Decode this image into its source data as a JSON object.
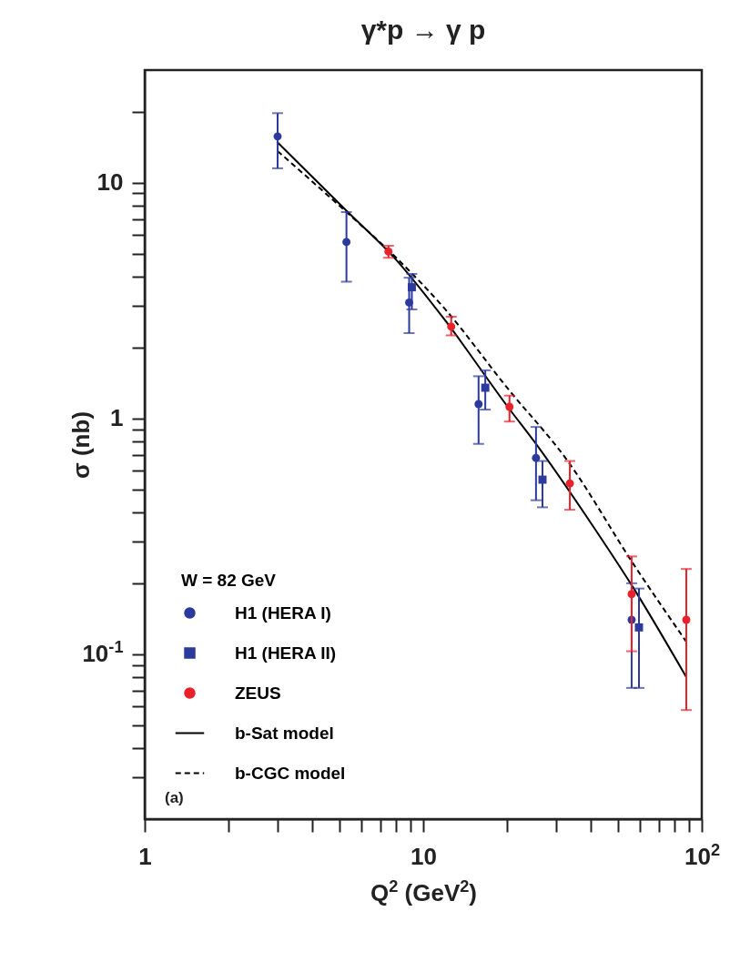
{
  "chart_data": {
    "type": "scatter",
    "title": "γ*p → γ p",
    "xlabel": "Q$^{2}$  (GeV$^{2}$)",
    "ylabel": "σ  (nb)",
    "legend_title": "W = 82 GeV",
    "log": "xy",
    "legend": "bottom left",
    "grid": false,
    "xlim": [
      1,
      100
    ],
    "ylim": [
      0.02,
      30
    ],
    "xticks": [
      1,
      {
        "value": 2,
        "label": null
      },
      {
        "value": 3,
        "label": null
      },
      {
        "value": 4,
        "label": null
      },
      {
        "value": 5,
        "label": null
      },
      {
        "value": 6,
        "label": null
      },
      {
        "value": 7,
        "label": null
      },
      {
        "value": 8,
        "label": null
      },
      {
        "value": 9,
        "label": null
      },
      10,
      {
        "value": 20,
        "label": null
      },
      {
        "value": 30,
        "label": null
      },
      {
        "value": 40,
        "label": null
      },
      {
        "value": 50,
        "label": null
      },
      {
        "value": 60,
        "label": null
      },
      {
        "value": 70,
        "label": null
      },
      {
        "value": 80,
        "label": null
      },
      {
        "value": 90,
        "label": null
      },
      {
        "value": 100,
        "label": "10$^{2}$"
      }
    ],
    "yticks": [
      {
        "value": 0.03,
        "label": null
      },
      {
        "value": 0.04,
        "label": null
      },
      {
        "value": 0.05,
        "label": null
      },
      {
        "value": 0.06,
        "label": null
      },
      {
        "value": 0.07,
        "label": null
      },
      {
        "value": 0.08,
        "label": null
      },
      {
        "value": 0.09,
        "label": null
      },
      {
        "value": 0.1,
        "label": "10$^{-1}$"
      },
      {
        "value": 0.2,
        "label": null
      },
      {
        "value": 0.3,
        "label": null
      },
      {
        "value": 0.4,
        "label": null
      },
      {
        "value": 0.5,
        "label": null
      },
      {
        "value": 0.6,
        "label": null
      },
      {
        "value": 0.7,
        "label": null
      },
      {
        "value": 0.8,
        "label": null
      },
      {
        "value": 0.9,
        "label": null
      },
      1,
      {
        "value": 2,
        "label": null
      },
      {
        "value": 3,
        "label": null
      },
      {
        "value": 4,
        "label": null
      },
      {
        "value": 5,
        "label": null
      },
      {
        "value": 6,
        "label": null
      },
      {
        "value": 7,
        "label": null
      },
      {
        "value": 8,
        "label": null
      },
      {
        "value": 9,
        "label": null
      },
      10,
      {
        "value": 20,
        "label": null
      }
    ],
    "annotations": [
      "(a)"
    ],
    "series": [
      {
        "name": "H1 (HERA I)",
        "marker": "circle",
        "color": "#2b3a9c",
        "x": [
          3,
          5.3,
          8.9,
          15.8,
          25.4,
          56
        ],
        "values": [
          15.7,
          5.6,
          3.1,
          1.15,
          0.68,
          0.14
        ],
        "errors": [
          [
            11.5,
            19.7
          ],
          [
            3.8,
            7.5
          ],
          [
            2.3,
            3.95
          ],
          [
            0.78,
            1.51
          ],
          [
            0.45,
            0.92
          ],
          [
            0.072,
            0.2
          ]
        ]
      },
      {
        "name": "H1 (HERA II)",
        "marker": "square",
        "color": "#2b3a9c",
        "x": [
          9.1,
          16.7,
          26.8,
          59.5
        ],
        "values": [
          3.6,
          1.35,
          0.55,
          0.13
        ],
        "errors": [
          [
            2.9,
            4.1
          ],
          [
            1.09,
            1.6
          ],
          [
            0.42,
            0.66
          ],
          [
            0.072,
            0.19
          ]
        ]
      },
      {
        "name": "ZEUS",
        "marker": "circle",
        "color": "#e8212b",
        "x": [
          7.5,
          12.6,
          20.4,
          33.6,
          56,
          88
        ],
        "values": [
          5.1,
          2.45,
          1.12,
          0.53,
          0.18,
          0.14
        ],
        "errors": [
          [
            4.8,
            5.4
          ],
          [
            2.25,
            2.7
          ],
          [
            0.97,
            1.25
          ],
          [
            0.41,
            0.66
          ],
          [
            0.103,
            0.26
          ],
          [
            0.058,
            0.23
          ]
        ]
      },
      {
        "name": "b-Sat model",
        "type": "line",
        "marker": "none",
        "line_style": "solid",
        "color": "#000000",
        "x": [
          3,
          5.3,
          8,
          12,
          20,
          25.6,
          40,
          57,
          88
        ],
        "values": [
          14.8,
          7.6,
          4.7,
          2.6,
          1.13,
          0.77,
          0.36,
          0.19,
          0.08
        ]
      },
      {
        "name": "b-CGC model",
        "type": "line",
        "marker": "none",
        "line_style": "dashed",
        "color": "#000000",
        "x": [
          3,
          5.3,
          8,
          12,
          20,
          33,
          57,
          88
        ],
        "values": [
          13.6,
          7.5,
          4.8,
          2.9,
          1.35,
          0.66,
          0.24,
          0.113
        ]
      }
    ]
  }
}
